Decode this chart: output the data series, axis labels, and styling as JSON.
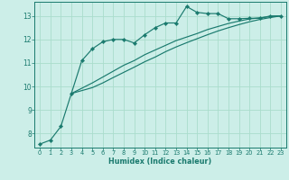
{
  "xlabel": "Humidex (Indice chaleur)",
  "background_color": "#cceee8",
  "grid_color": "#aaddcc",
  "line_color": "#1a7a6e",
  "xlim": [
    -0.5,
    23.5
  ],
  "ylim": [
    7.4,
    13.6
  ],
  "xticks": [
    0,
    1,
    2,
    3,
    4,
    5,
    6,
    7,
    8,
    9,
    10,
    11,
    12,
    13,
    14,
    15,
    16,
    17,
    18,
    19,
    20,
    21,
    22,
    23
  ],
  "yticks": [
    8,
    9,
    10,
    11,
    12,
    13
  ],
  "line1_x": [
    0,
    1,
    2,
    3,
    4,
    5,
    6,
    7,
    8,
    9,
    10,
    11,
    12,
    13,
    14,
    15,
    16,
    17,
    18,
    19,
    20,
    21,
    22,
    23
  ],
  "line1_y": [
    7.55,
    7.72,
    8.3,
    9.7,
    11.1,
    11.6,
    11.9,
    12.0,
    12.0,
    11.85,
    12.2,
    12.5,
    12.7,
    12.7,
    13.4,
    13.15,
    13.1,
    13.1,
    12.88,
    12.88,
    12.9,
    12.9,
    13.0,
    13.0
  ],
  "line2_x": [
    3,
    5,
    6,
    7,
    8,
    9,
    10,
    11,
    12,
    13,
    14,
    15,
    16,
    17,
    18,
    19,
    20,
    21,
    22,
    23
  ],
  "line2_y": [
    9.7,
    10.15,
    10.4,
    10.65,
    10.9,
    11.1,
    11.35,
    11.55,
    11.75,
    11.95,
    12.1,
    12.25,
    12.42,
    12.55,
    12.68,
    12.78,
    12.87,
    12.92,
    12.97,
    13.0
  ],
  "line3_x": [
    3,
    5,
    6,
    7,
    8,
    9,
    10,
    11,
    12,
    13,
    14,
    15,
    16,
    17,
    18,
    19,
    20,
    21,
    22,
    23
  ],
  "line3_y": [
    9.7,
    9.95,
    10.15,
    10.38,
    10.6,
    10.82,
    11.05,
    11.25,
    11.48,
    11.68,
    11.86,
    12.03,
    12.2,
    12.36,
    12.5,
    12.63,
    12.75,
    12.85,
    12.93,
    13.0
  ]
}
